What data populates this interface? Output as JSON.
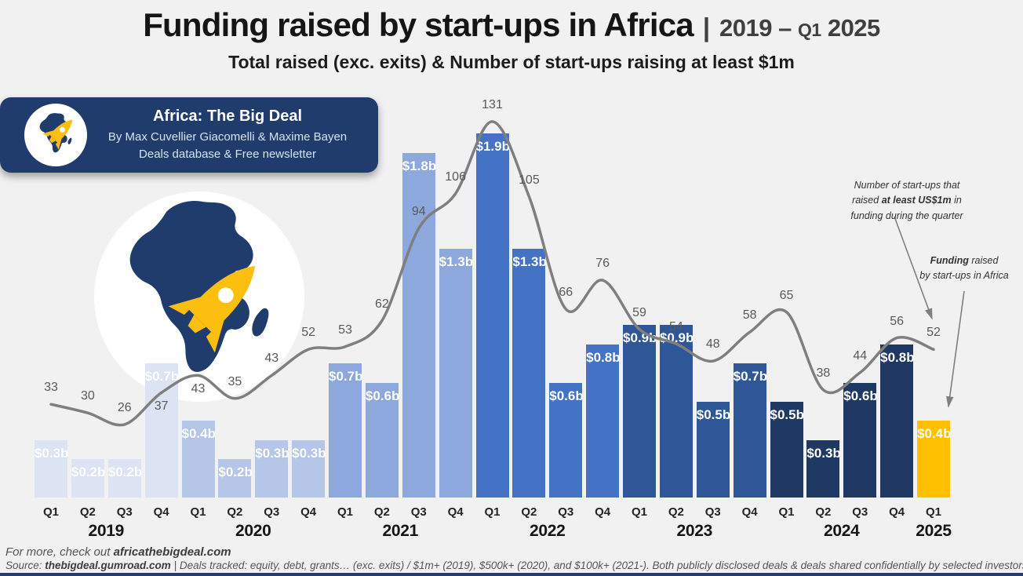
{
  "title": {
    "main": "Funding raised by start-ups in Africa",
    "separator": "|",
    "period_year_start": "2019",
    "period_dash": "–",
    "period_q": "Q1",
    "period_year_end": "2025",
    "subtitle": "Total raised (exc. exits) & Number of start-ups raising at least $1m"
  },
  "brand_card": {
    "title": "Africa: The Big Deal",
    "byline": "By Max Cuvellier Giacomelli & Maxime Bayen",
    "tagline": "Deals database & Free newsletter"
  },
  "annotations": {
    "line_note_lines": [
      [
        {
          "t": "Number of start-ups that"
        }
      ],
      [
        {
          "t": "raised "
        },
        {
          "t": "at least US$1m",
          "b": true
        },
        {
          "t": " in"
        }
      ],
      [
        {
          "t": "funding during the quarter"
        }
      ]
    ],
    "bar_note_lines": [
      [
        {
          "t": "Funding",
          "b": true
        },
        {
          "t": " raised"
        }
      ],
      [
        {
          "t": "by start-ups in Africa"
        }
      ]
    ]
  },
  "footer": {
    "line1": [
      {
        "t": "For more, check out "
      },
      {
        "t": "africathebigdeal.com",
        "b": true,
        "link": true,
        "name": "africathebigdeal-link"
      }
    ],
    "line2": [
      {
        "t": "Source: "
      },
      {
        "t": "thebigdeal.gumroad.com",
        "b": true,
        "link": true,
        "name": "gumroad-link"
      },
      {
        "t": " | Deals tracked: equity, debt, grants… (exc. exits) / $1m+ (2019), $500k+ (2020), and $100k+ (2021-). Both publicly disclosed deals & deals shared confidentially by selected investors"
      }
    ]
  },
  "theme": {
    "background": "#f1f1f2",
    "navy": "#1f3c6d",
    "yellow": "#ffc000",
    "line_gray": "#7f7f7f"
  },
  "chart_data": {
    "type": "bar+line",
    "title": "Funding raised by start-ups in Africa 2019 – Q1 2025",
    "years": [
      {
        "label": "2019",
        "quarters": [
          "Q1",
          "Q2",
          "Q3",
          "Q4"
        ]
      },
      {
        "label": "2020",
        "quarters": [
          "Q1",
          "Q2",
          "Q3",
          "Q4"
        ]
      },
      {
        "label": "2021",
        "quarters": [
          "Q1",
          "Q2",
          "Q3",
          "Q4"
        ]
      },
      {
        "label": "2022",
        "quarters": [
          "Q1",
          "Q2",
          "Q3",
          "Q4"
        ]
      },
      {
        "label": "2023",
        "quarters": [
          "Q1",
          "Q2",
          "Q3",
          "Q4"
        ]
      },
      {
        "label": "2024",
        "quarters": [
          "Q1",
          "Q2",
          "Q3",
          "Q4"
        ]
      },
      {
        "label": "2025",
        "quarters": [
          "Q1"
        ]
      }
    ],
    "series": [
      {
        "name": "Funding raised by start-ups (USD billions, exc. exits)",
        "type": "bar",
        "values": [
          0.3,
          0.2,
          0.2,
          0.7,
          0.4,
          0.2,
          0.3,
          0.3,
          0.7,
          0.6,
          1.8,
          1.3,
          1.9,
          1.3,
          0.6,
          0.8,
          0.9,
          0.9,
          0.5,
          0.7,
          0.5,
          0.3,
          0.6,
          0.8,
          0.4
        ],
        "labels": [
          "$0.3b",
          "$0.2b",
          "$0.2b",
          "$0.7b",
          "$0.4b",
          "$0.2b",
          "$0.3b",
          "$0.3b",
          "$0.7b",
          "$0.6b",
          "$1.8b",
          "$1.3b",
          "$1.9b",
          "$1.3b",
          "$0.6b",
          "$0.8b",
          "$0.9b",
          "$0.9b",
          "$0.5b",
          "$0.7b",
          "$0.5b",
          "$0.3b",
          "$0.6b",
          "$0.8b",
          "$0.4b"
        ]
      },
      {
        "name": "Number of start-ups that raised at least US$1m",
        "type": "line",
        "values": [
          33,
          30,
          26,
          37,
          43,
          35,
          43,
          52,
          53,
          62,
          94,
          106,
          131,
          105,
          66,
          76,
          59,
          54,
          48,
          58,
          65,
          38,
          44,
          56,
          52
        ]
      }
    ],
    "colors": {
      "2019": "#dce4f3",
      "2020": "#b5c6e8",
      "2021": "#8da8dc",
      "2022": "#4472c4",
      "2023": "#2d5796",
      "2024": "#1f3864",
      "2025": "#ffc000",
      "line": "#7f7f7f"
    },
    "bar_axis_range": [
      0,
      2.0
    ],
    "line_axis_range": [
      0,
      140
    ],
    "line_label_side": {
      "3": "below",
      "4": "below"
    },
    "legend_position": "annotated-arrows",
    "grid": false
  }
}
